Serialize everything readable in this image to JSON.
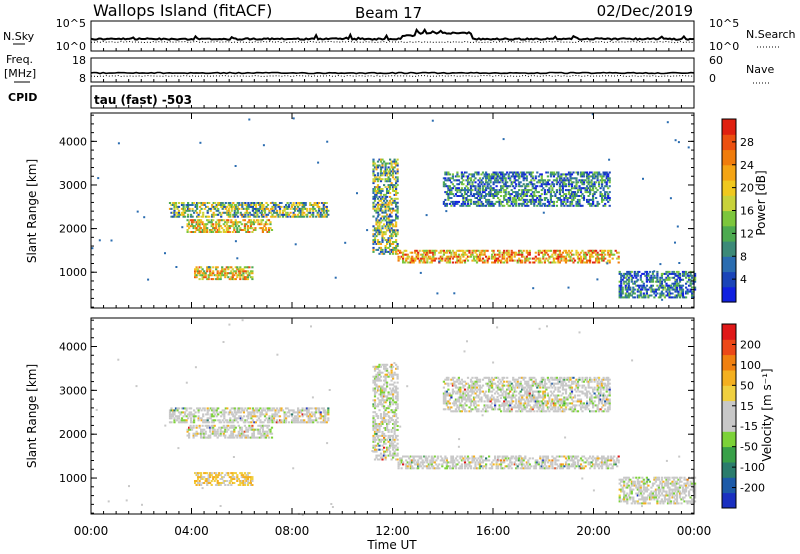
{
  "header": {
    "site": "Wallops Island (fitACF)",
    "beam": "Beam 17",
    "date": "02/Dec/2019"
  },
  "noise_panel": {
    "left_label": "N.Sky",
    "left_ticks": [
      "10^5",
      "10^0"
    ],
    "right_label": "N.Search",
    "right_ticks": [
      "10^5",
      "10^0"
    ]
  },
  "freq_panel": {
    "left_label_1": "Freq.",
    "left_label_2": "[MHz]",
    "left_ticks": [
      "18",
      "8"
    ],
    "right_label": "Nave",
    "right_ticks": [
      "60",
      "0"
    ]
  },
  "cpid_panel": {
    "label": "CPID",
    "text": "tau (fast) -503"
  },
  "x_axis": {
    "label": "Time UT",
    "ticks": [
      "00:00",
      "04:00",
      "08:00",
      "12:00",
      "16:00",
      "20:00",
      "00:00"
    ]
  },
  "chart_data": [
    {
      "type": "heatmap",
      "title": "",
      "xlabel": "",
      "ylabel": "Slant Range [km]",
      "xlim": [
        0,
        24
      ],
      "ylim": [
        180,
        4650
      ],
      "y_ticks": [
        "1000",
        "2000",
        "3000",
        "4000"
      ],
      "colorbar": {
        "label": "Power [dB]",
        "ticks": [
          "4",
          "8",
          "12",
          "16",
          "20",
          "24",
          "28"
        ],
        "colors": [
          "#1020e0",
          "#1a44b8",
          "#2a6cb0",
          "#3c8a78",
          "#4caa50",
          "#7cc63c",
          "#c8d23a",
          "#f0c81e",
          "#f4a414",
          "#f07c0c",
          "#ec5010",
          "#e02010"
        ]
      },
      "regions": [
        {
          "t": [
            3.1,
            9.4
          ],
          "r": [
            2250,
            2600
          ],
          "level": "mid"
        },
        {
          "t": [
            3.8,
            7.2
          ],
          "r": [
            1900,
            2200
          ],
          "level": "high"
        },
        {
          "t": [
            4.1,
            6.4
          ],
          "r": [
            820,
            1100
          ],
          "level": "high"
        },
        {
          "t": [
            11.2,
            12.2
          ],
          "r": [
            1400,
            3600
          ],
          "level": "mid"
        },
        {
          "t": [
            12.2,
            21.0
          ],
          "r": [
            1200,
            1500
          ],
          "level": "peak"
        },
        {
          "t": [
            14.0,
            20.6
          ],
          "r": [
            2500,
            3300
          ],
          "level": "low"
        },
        {
          "t": [
            21.0,
            24.0
          ],
          "r": [
            400,
            1000
          ],
          "level": "low"
        }
      ]
    },
    {
      "type": "heatmap",
      "title": "",
      "xlabel": "Time UT",
      "ylabel": "Slant Range [km]",
      "xlim": [
        0,
        24
      ],
      "ylim": [
        180,
        4650
      ],
      "y_ticks": [
        "1000",
        "2000",
        "3000",
        "4000"
      ],
      "colorbar": {
        "label": "Velocity [m s⁻¹]",
        "ticks": [
          "200",
          "100",
          "50",
          "15",
          "-15",
          "-50",
          "-100",
          "-200"
        ],
        "colors": [
          "#1a30c0",
          "#1c5aa8",
          "#2a7c6c",
          "#38a048",
          "#7cd238",
          "#c8c8c8",
          "#c8c8c8",
          "#f0d040",
          "#f4b020",
          "#f08010",
          "#ec4818",
          "#e01818"
        ]
      },
      "regions": [
        {
          "t": [
            3.1,
            9.4
          ],
          "r": [
            2250,
            2600
          ],
          "level": "grey"
        },
        {
          "t": [
            3.8,
            7.2
          ],
          "r": [
            1900,
            2200
          ],
          "level": "grey"
        },
        {
          "t": [
            4.1,
            6.4
          ],
          "r": [
            820,
            1100
          ],
          "level": "orange"
        },
        {
          "t": [
            11.2,
            12.2
          ],
          "r": [
            1400,
            3600
          ],
          "level": "grey"
        },
        {
          "t": [
            12.2,
            21.0
          ],
          "r": [
            1200,
            1500
          ],
          "level": "grey"
        },
        {
          "t": [
            14.0,
            20.6
          ],
          "r": [
            2500,
            3300
          ],
          "level": "grey"
        },
        {
          "t": [
            21.0,
            24.0
          ],
          "r": [
            400,
            1000
          ],
          "level": "grey"
        }
      ]
    }
  ]
}
